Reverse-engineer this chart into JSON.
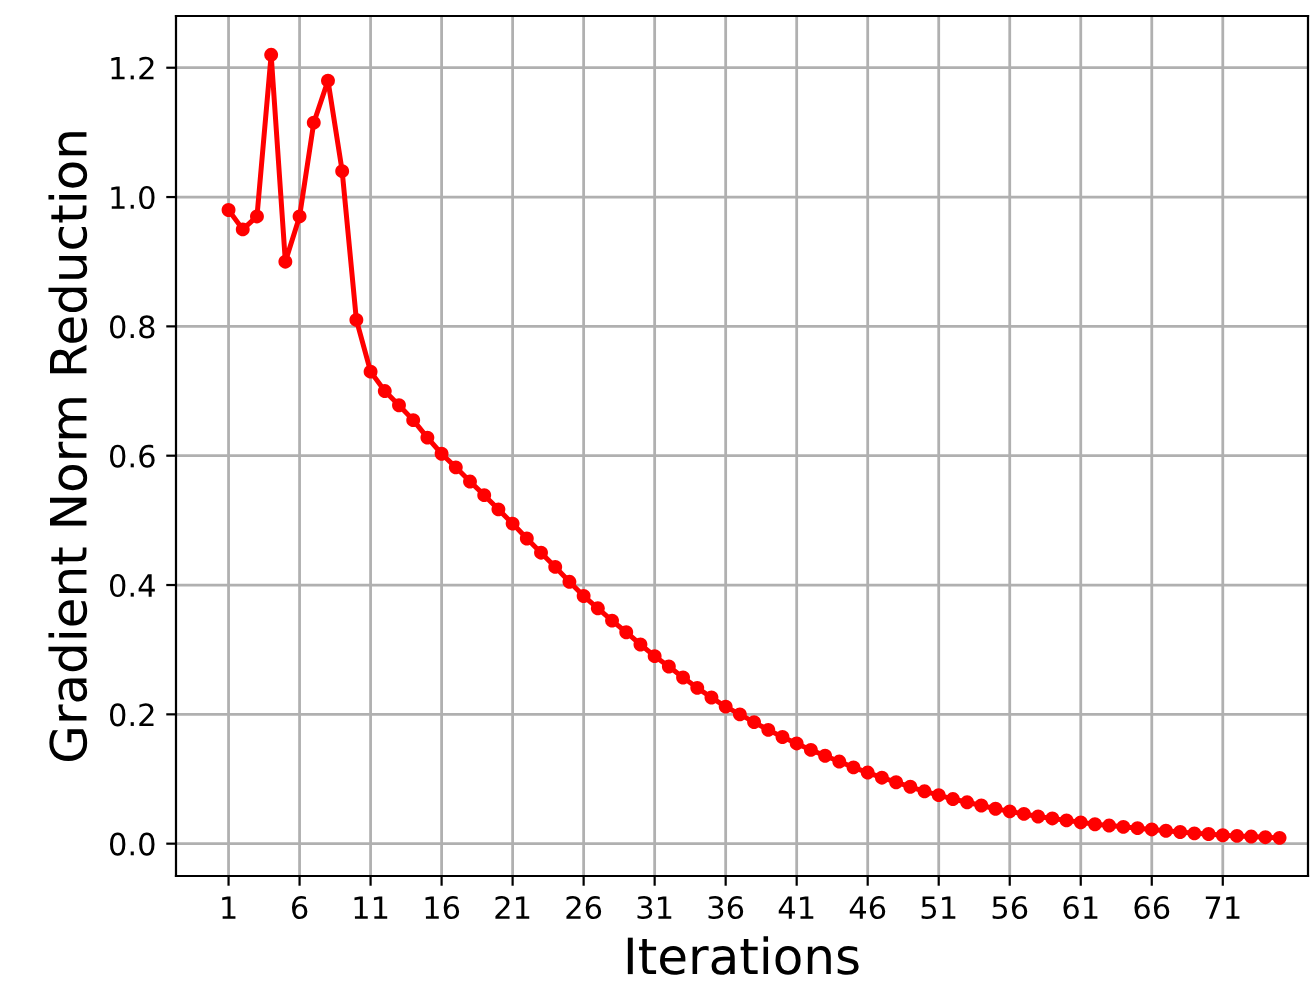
{
  "chart_data": {
    "type": "line",
    "xlabel": "Iterations",
    "ylabel": "Gradient Norm Reduction",
    "x": [
      1,
      2,
      3,
      4,
      5,
      6,
      7,
      8,
      9,
      10,
      11,
      12,
      13,
      14,
      15,
      16,
      17,
      18,
      19,
      20,
      21,
      22,
      23,
      24,
      25,
      26,
      27,
      28,
      29,
      30,
      31,
      32,
      33,
      34,
      35,
      36,
      37,
      38,
      39,
      40,
      41,
      42,
      43,
      44,
      45,
      46,
      47,
      48,
      49,
      50,
      51,
      52,
      53,
      54,
      55,
      56,
      57,
      58,
      59,
      60,
      61,
      62,
      63,
      64,
      65,
      66,
      67,
      68,
      69,
      70,
      71,
      72,
      73,
      74,
      75
    ],
    "series": [
      {
        "color": "#ff0000",
        "values": [
          0.98,
          0.95,
          0.97,
          1.22,
          0.9,
          0.97,
          1.115,
          1.18,
          1.04,
          0.81,
          0.73,
          0.7,
          0.678,
          0.655,
          0.628,
          0.603,
          0.582,
          0.56,
          0.539,
          0.517,
          0.495,
          0.472,
          0.45,
          0.428,
          0.405,
          0.383,
          0.364,
          0.345,
          0.327,
          0.308,
          0.29,
          0.274,
          0.257,
          0.241,
          0.226,
          0.212,
          0.2,
          0.188,
          0.176,
          0.165,
          0.155,
          0.145,
          0.136,
          0.127,
          0.118,
          0.11,
          0.102,
          0.095,
          0.088,
          0.081,
          0.075,
          0.069,
          0.064,
          0.059,
          0.054,
          0.05,
          0.046,
          0.042,
          0.039,
          0.036,
          0.033,
          0.03,
          0.028,
          0.026,
          0.024,
          0.022,
          0.02,
          0.018,
          0.016,
          0.015,
          0.013,
          0.012,
          0.011,
          0.01,
          0.009
        ]
      }
    ],
    "xlim": [
      -2.7,
      77
    ],
    "ylim": [
      -0.05,
      1.28
    ],
    "xticks": [
      1,
      6,
      11,
      16,
      21,
      26,
      31,
      36,
      41,
      46,
      51,
      56,
      61,
      66,
      71
    ],
    "yticks": [
      {
        "value": 0,
        "label": "0.0"
      },
      {
        "value": 0.2,
        "label": "0.2"
      },
      {
        "value": 0.4,
        "label": "0.4"
      },
      {
        "value": 0.6,
        "label": "0.6"
      },
      {
        "value": 0.8,
        "label": "0.8"
      },
      {
        "value": 1.0,
        "label": "1.0"
      },
      {
        "value": 1.2,
        "label": "1.2"
      }
    ],
    "grid": true,
    "marker": "circle",
    "line_style": "solid"
  }
}
